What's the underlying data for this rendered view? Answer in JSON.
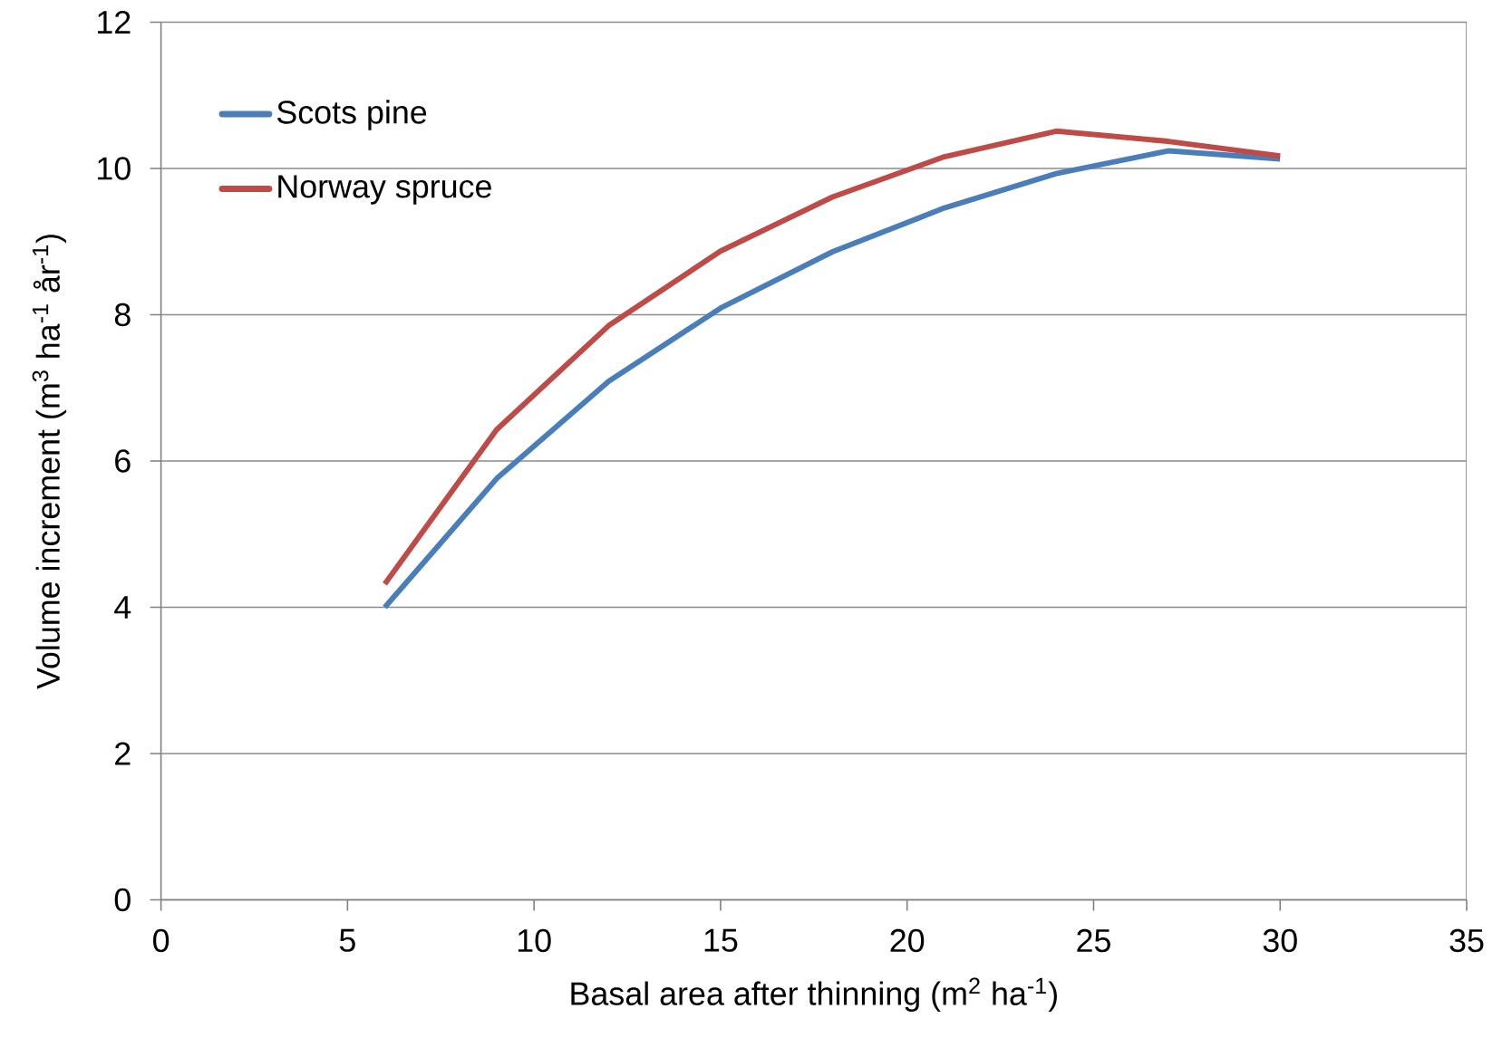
{
  "chart_data": {
    "type": "line",
    "xlabel": "Basal area after thinning (m$^{2}$ ha$^{-1}$)",
    "ylabel": "Volume increment (m$^{3}$ ha$^{-1}$ år$^{-1}$)",
    "x": [
      6,
      9,
      12,
      15,
      18,
      21,
      24,
      27,
      30
    ],
    "series": [
      {
        "name": "Scots pine",
        "color": "#4a7ebb",
        "values": [
          4.0,
          5.76,
          7.09,
          8.09,
          8.86,
          9.46,
          9.93,
          10.24,
          10.13
        ]
      },
      {
        "name": "Norway spruce",
        "color": "#be4b48",
        "values": [
          4.32,
          6.43,
          7.85,
          8.87,
          9.61,
          10.16,
          10.51,
          10.37,
          10.17
        ]
      }
    ],
    "xlim": [
      0,
      35
    ],
    "ylim": [
      0,
      12
    ],
    "xticks": [
      0,
      5,
      10,
      15,
      20,
      25,
      30,
      35
    ],
    "yticks": [
      0,
      2,
      4,
      6,
      8,
      10,
      12
    ],
    "grid": "y",
    "legend": "top left",
    "marker": "none",
    "line_style": "solid"
  }
}
